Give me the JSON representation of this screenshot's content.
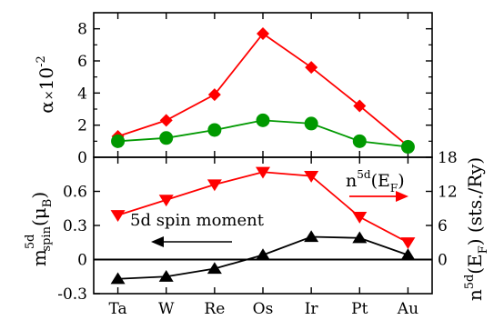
{
  "chart_data": [
    {
      "type": "line",
      "panel": "top",
      "categories": [
        "Ta",
        "W",
        "Re",
        "Os",
        "Ir",
        "Pt",
        "Au"
      ],
      "ylabel": "α ×10⁻²",
      "ylabel_parts": {
        "main": "α",
        "times": "×",
        "base": "10",
        "exp": "-2"
      },
      "ylim": [
        0,
        9
      ],
      "yticks": [
        0,
        2,
        4,
        6,
        8
      ],
      "ytick_labels": [
        "0",
        "2",
        "4",
        "6",
        "8"
      ],
      "grid": false,
      "series": [
        {
          "color": "#ff0000",
          "marker": "diamond",
          "values": [
            1.3,
            2.3,
            3.9,
            7.7,
            5.6,
            3.2,
            0.7
          ]
        },
        {
          "color": "#009900",
          "marker": "circle",
          "values": [
            1.0,
            1.2,
            1.7,
            2.3,
            2.1,
            1.0,
            0.65
          ]
        }
      ]
    },
    {
      "type": "line",
      "panel": "bottom",
      "categories": [
        "Ta",
        "W",
        "Re",
        "Os",
        "Ir",
        "Pt",
        "Au"
      ],
      "ylabel_left": "m_spin^5d(μ_B)",
      "ylabel_left_parts": {
        "m": "m",
        "sup": "5d",
        "sub": "spin",
        "unit": "(μ",
        "unit_sub": "B",
        "close": ")"
      },
      "ylabel_right": "n^5d(E_F) (sts./Ry)",
      "ylabel_right_parts": {
        "n": "n",
        "sup": "5d",
        "e": "(E",
        "e_sub": "F",
        "rest": ") (sts./Ry)"
      },
      "ylim_left": [
        -0.3,
        0.9
      ],
      "yticks_left": [
        -0.3,
        0,
        0.3,
        0.6
      ],
      "ytick_labels_left": [
        "-0.3",
        "0",
        "0.3",
        "0.6"
      ],
      "ylim_right": [
        -6,
        18
      ],
      "yticks_right": [
        0,
        6,
        12,
        18
      ],
      "ytick_labels_right": [
        "0",
        "6",
        "12",
        "18"
      ],
      "zero_line": true,
      "grid": false,
      "series": [
        {
          "axis": "right",
          "color": "#ff0000",
          "marker": "triangle-down",
          "values": [
            7.8,
            10.5,
            13.2,
            15.4,
            14.7,
            7.5,
            3.0
          ]
        },
        {
          "axis": "left",
          "color": "#000000",
          "marker": "triangle-up",
          "values": [
            -0.17,
            -0.15,
            -0.08,
            0.04,
            0.2,
            0.19,
            0.04
          ]
        }
      ],
      "annotations": [
        {
          "label": "5d spin moment",
          "arrow_direction": "left",
          "arrow_color": "#000000"
        },
        {
          "label_parts": {
            "n": "n",
            "sup": "5d",
            "e": "(E",
            "e_sub": "F",
            "close": ")"
          },
          "arrow_direction": "right",
          "arrow_color": "#ff0000"
        }
      ]
    }
  ]
}
